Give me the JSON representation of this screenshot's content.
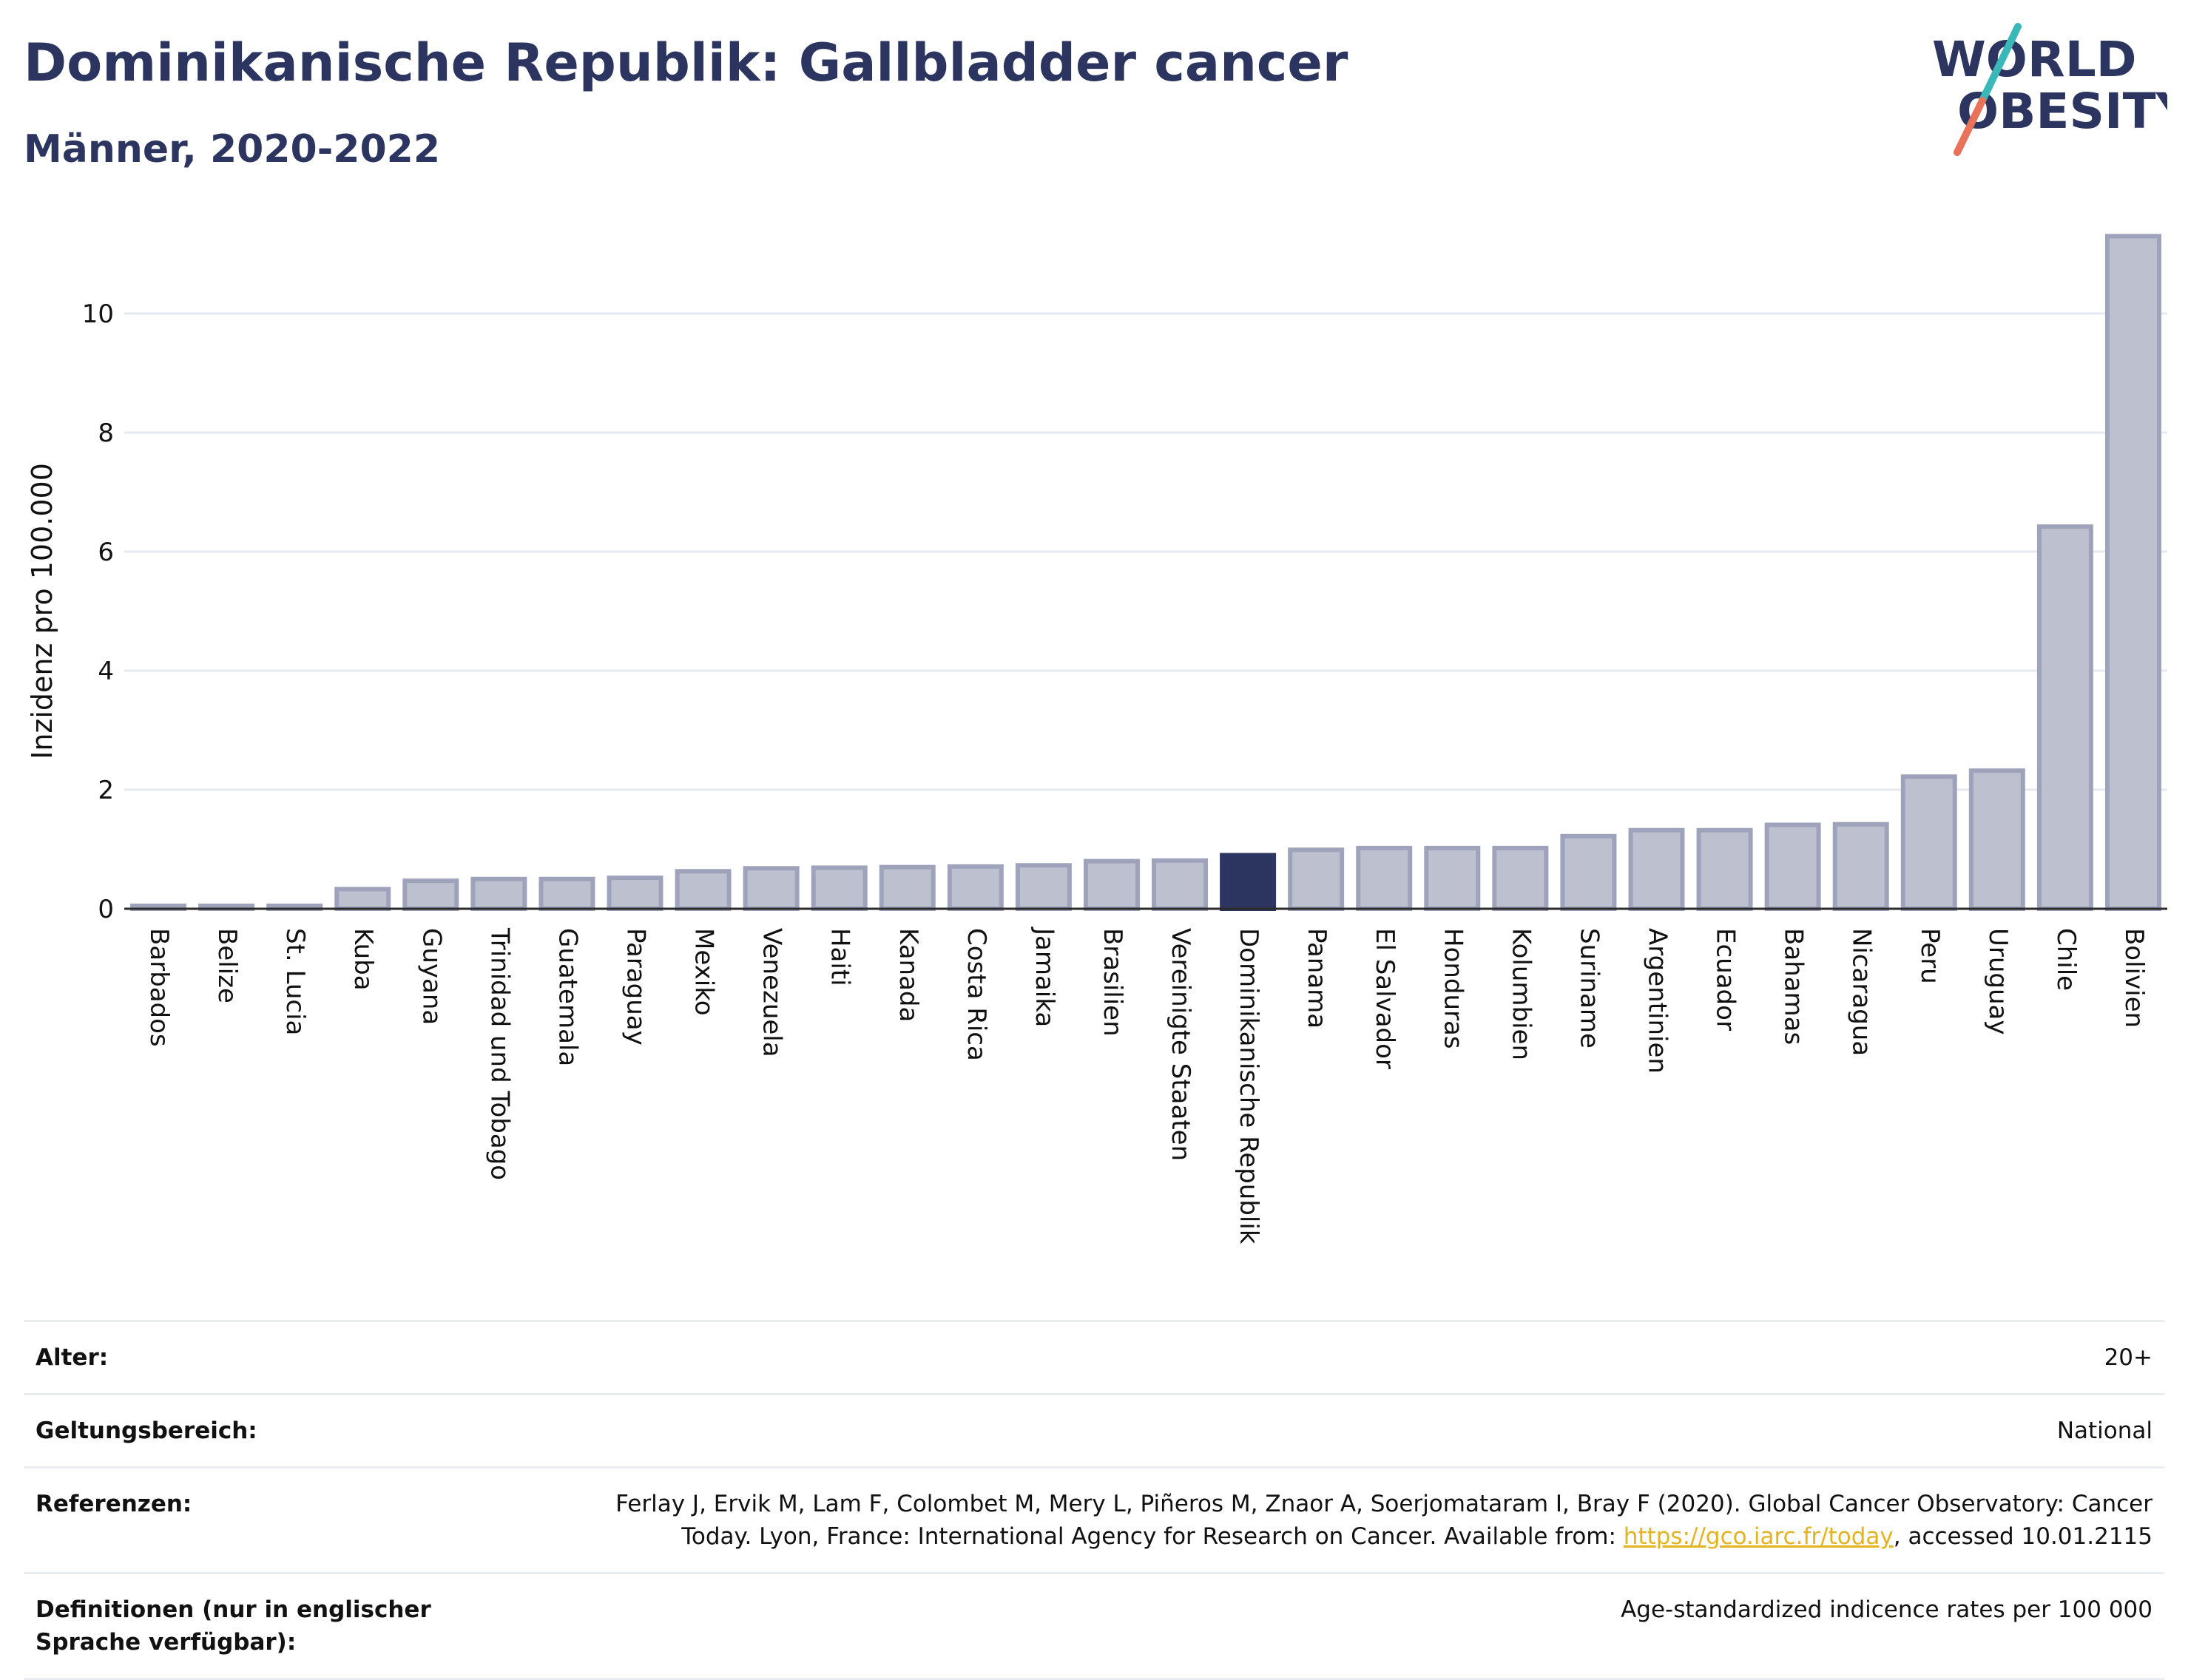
{
  "header": {
    "title": "Dominikanische Republik: Gallbladder cancer",
    "subtitle": "Männer, 2020-2022"
  },
  "logo": {
    "line1": "WORLD",
    "line2": "OBESITY"
  },
  "colors": {
    "bar": "#bcc0cf",
    "bar_edge": "#9ea3bb",
    "highlight": "#2b3560",
    "grid": "#e6e9f0",
    "title": "#2b3560"
  },
  "chart_data": {
    "type": "bar",
    "ylabel": "Inzidenz pro 100.000",
    "ylim": [
      0,
      11.5
    ],
    "yticks": [
      0,
      2,
      4,
      6,
      8,
      10
    ],
    "highlight": "Dominikanische Republik",
    "categories": [
      "Barbados",
      "Belize",
      "St. Lucia",
      "Kuba",
      "Guyana",
      "Trinidad und Tobago",
      "Guatemala",
      "Paraguay",
      "Mexiko",
      "Venezuela",
      "Haiti",
      "Kanada",
      "Costa Rica",
      "Jamaika",
      "Brasilien",
      "Vereinigte Staaten",
      "Dominikanische Republik",
      "Panama",
      "El Salvador",
      "Honduras",
      "Kolumbien",
      "Suriname",
      "Argentinien",
      "Ecuador",
      "Bahamas",
      "Nicaragua",
      "Peru",
      "Uruguay",
      "Chile",
      "Bolivien"
    ],
    "values": [
      0.05,
      0.05,
      0.05,
      0.33,
      0.47,
      0.5,
      0.5,
      0.52,
      0.63,
      0.68,
      0.69,
      0.7,
      0.71,
      0.73,
      0.8,
      0.81,
      0.9,
      0.99,
      1.02,
      1.02,
      1.02,
      1.22,
      1.32,
      1.32,
      1.41,
      1.42,
      2.22,
      2.32,
      6.42,
      11.3
    ]
  },
  "meta": {
    "age_label": "Alter:",
    "age_value": "20+",
    "scope_label": "Geltungsbereich:",
    "scope_value": "National",
    "ref_label": "Referenzen:",
    "ref_text_1": "Ferlay J, Ervik M, Lam F, Colombet M, Mery L, Piñeros M, Znaor A, Soerjomataram I, Bray F (2020). Global Cancer Observatory: Cancer Today. Lyon, France: International Agency for Research on Cancer. Available from: ",
    "ref_link": "https://gco.iarc.fr/today",
    "ref_text_2": ", accessed 10.01.2115",
    "def_label": "Definitionen (nur in englischer Sprache verfügbar):",
    "def_value": "Age-standardized indicence rates per 100 000"
  }
}
